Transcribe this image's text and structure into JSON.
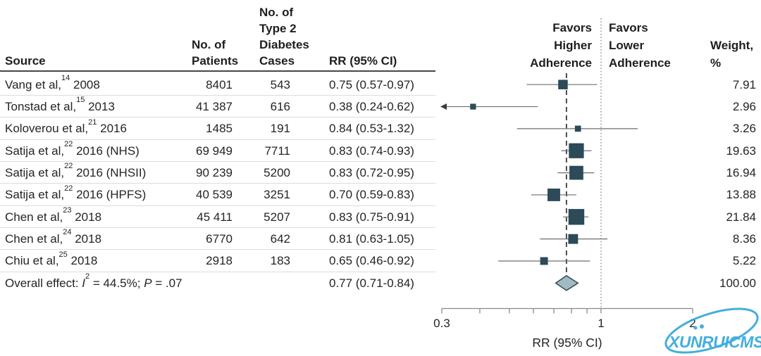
{
  "table": {
    "columns": {
      "source": "Source",
      "patients_lines": [
        "No. of",
        "Patients"
      ],
      "cases_lines": [
        "No. of",
        "Type 2",
        "Diabetes",
        "Cases"
      ],
      "rr": "RR (95% CI)",
      "favors_higher_lines": [
        "Favors",
        "Higher",
        "Adherence"
      ],
      "favors_lower_lines": [
        "Favors",
        "Lower",
        "Adherence"
      ],
      "weight_lines": [
        "Weight,",
        "%"
      ]
    },
    "rows": [
      {
        "source": "Vang et al,",
        "ref": "14",
        "year": " 2008",
        "patients": "8401",
        "cases": "543",
        "rr": "0.75 (0.57-0.97)",
        "weight": "7.91"
      },
      {
        "source": "Tonstad et al,",
        "ref": "15",
        "year": " 2013",
        "patients": "41 387",
        "cases": "616",
        "rr": "0.38 (0.24-0.62)",
        "weight": "2.96"
      },
      {
        "source": "Koloverou et al,",
        "ref": "21",
        "year": " 2016",
        "patients": "1485",
        "cases": "191",
        "rr": "0.84 (0.53-1.32)",
        "weight": "3.26"
      },
      {
        "source": "Satija et al,",
        "ref": "22",
        "year": " 2016 (NHS)",
        "patients": "69 949",
        "cases": "7711",
        "rr": "0.83 (0.74-0.93)",
        "weight": "19.63"
      },
      {
        "source": "Satija et al,",
        "ref": "22",
        "year": " 2016 (NHSII)",
        "patients": "90 239",
        "cases": "5200",
        "rr": "0.83 (0.72-0.95)",
        "weight": "16.94"
      },
      {
        "source": "Satija et al,",
        "ref": "22",
        "year": " 2016 (HPFS)",
        "patients": "40 539",
        "cases": "3251",
        "rr": "0.70 (0.59-0.83)",
        "weight": "13.88"
      },
      {
        "source": "Chen et al,",
        "ref": "23",
        "year": " 2018",
        "patients": "45 411",
        "cases": "5207",
        "rr": "0.83 (0.75-0.91)",
        "weight": "21.84"
      },
      {
        "source": "Chen et al,",
        "ref": "24",
        "year": " 2018",
        "patients": "6770",
        "cases": "642",
        "rr": "0.81 (0.63-1.05)",
        "weight": "8.36"
      },
      {
        "source": "Chiu et al,",
        "ref": "25",
        "year": " 2018",
        "patients": "2918",
        "cases": "183",
        "rr": "0.65 (0.46-0.92)",
        "weight": "5.22"
      }
    ],
    "overall": {
      "prefix": "Overall effect: ",
      "stat_i": "I",
      "stat_sup": "2",
      "mid": " = 44.5%; ",
      "stat_p": "P",
      "suffix": " = .07",
      "rr": "0.77 (0.71-0.84)",
      "weight": "100.00"
    }
  },
  "chart_data": {
    "type": "forest",
    "x_scale": "log",
    "xlim": [
      0.3,
      2
    ],
    "axis_ticks": [
      0.3,
      0.4,
      0.5,
      0.6,
      0.7,
      0.8,
      0.9,
      1,
      2
    ],
    "tick_labels": [
      "0.3",
      "1",
      "2"
    ],
    "xlabel": "RR (95% CI)",
    "null_line": 1,
    "overall_line": 0.77,
    "legend_left": "Favors Higher Adherence",
    "legend_right": "Favors Lower Adherence",
    "studies": [
      {
        "label": "Vang et al, 2008",
        "rr": 0.75,
        "lcl": 0.57,
        "ucl": 0.97,
        "weight": 7.91
      },
      {
        "label": "Tonstad et al, 2013",
        "rr": 0.38,
        "lcl": 0.24,
        "ucl": 0.62,
        "weight": 2.96
      },
      {
        "label": "Koloverou et al, 2016",
        "rr": 0.84,
        "lcl": 0.53,
        "ucl": 1.32,
        "weight": 3.26
      },
      {
        "label": "Satija et al, 2016 (NHS)",
        "rr": 0.83,
        "lcl": 0.74,
        "ucl": 0.93,
        "weight": 19.63
      },
      {
        "label": "Satija et al, 2016 (NHSII)",
        "rr": 0.83,
        "lcl": 0.72,
        "ucl": 0.95,
        "weight": 16.94
      },
      {
        "label": "Satija et al, 2016 (HPFS)",
        "rr": 0.7,
        "lcl": 0.59,
        "ucl": 0.83,
        "weight": 13.88
      },
      {
        "label": "Chen et al, 2018",
        "rr": 0.83,
        "lcl": 0.75,
        "ucl": 0.91,
        "weight": 21.84
      },
      {
        "label": "Chen et al, 2018",
        "rr": 0.81,
        "lcl": 0.63,
        "ucl": 1.05,
        "weight": 8.36
      },
      {
        "label": "Chiu et al, 2018",
        "rr": 0.65,
        "lcl": 0.46,
        "ucl": 0.92,
        "weight": 5.22
      }
    ],
    "overall": {
      "label": "Overall effect",
      "rr": 0.77,
      "lcl": 0.71,
      "ucl": 0.84,
      "weight": 100.0
    },
    "colors": {
      "square": "#2C4A57",
      "diamond_fill": "#A3BAC3",
      "diamond_stroke": "#33515C",
      "ci_line": "#6E6E6E",
      "overall_dash": "#3B3B3B",
      "null_dotted": "#8F8F8F",
      "axis": "#8A8A8A",
      "text": "#242424"
    }
  },
  "watermark": {
    "text": "XUNRUICMS",
    "color": "#35A8DB"
  }
}
